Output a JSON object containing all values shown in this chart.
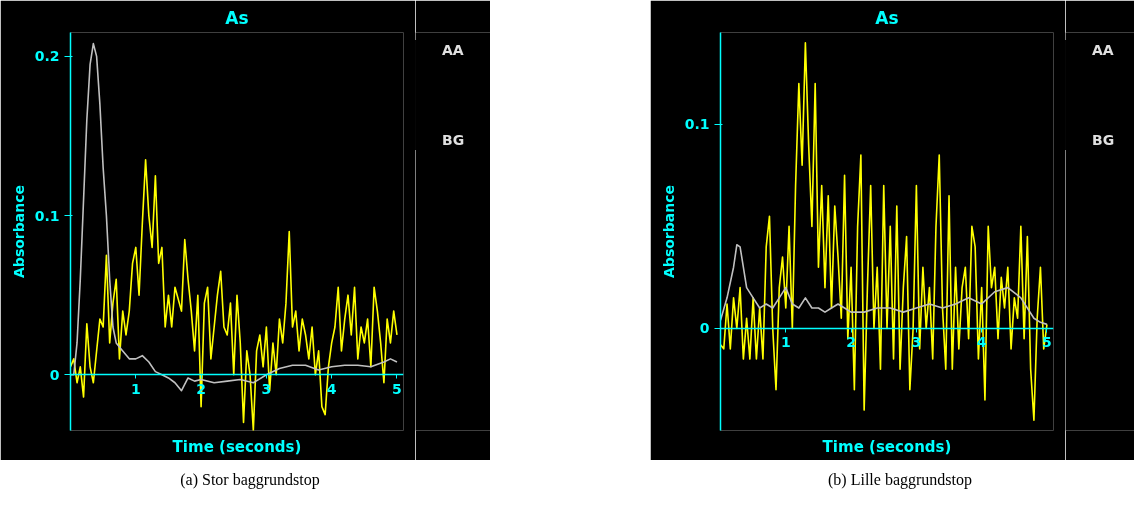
{
  "chart_data": [
    {
      "type": "line",
      "title": "As",
      "xlabel": "Time (seconds)",
      "ylabel": "Absorbance",
      "xlim": [
        0,
        5.1
      ],
      "ylim": [
        -0.035,
        0.215
      ],
      "xticks": [
        1,
        2,
        3,
        4,
        5
      ],
      "yticks": [
        0,
        0.1,
        0.2
      ],
      "grid": false,
      "legend": "right",
      "annotations": [
        "(a)  Stor baggrundstop"
      ],
      "series": [
        {
          "name": "AA",
          "color": "#ffff00",
          "x": [
            0,
            0.05,
            0.1,
            0.15,
            0.2,
            0.25,
            0.3,
            0.35,
            0.4,
            0.45,
            0.5,
            0.55,
            0.6,
            0.65,
            0.7,
            0.75,
            0.8,
            0.85,
            0.9,
            0.95,
            1.0,
            1.05,
            1.1,
            1.15,
            1.2,
            1.25,
            1.3,
            1.35,
            1.4,
            1.45,
            1.5,
            1.55,
            1.6,
            1.7,
            1.75,
            1.8,
            1.85,
            1.9,
            1.95,
            2.0,
            2.05,
            2.1,
            2.15,
            2.2,
            2.25,
            2.3,
            2.35,
            2.4,
            2.45,
            2.5,
            2.55,
            2.6,
            2.65,
            2.7,
            2.75,
            2.8,
            2.85,
            2.9,
            2.95,
            3.0,
            3.05,
            3.1,
            3.15,
            3.2,
            3.25,
            3.3,
            3.35,
            3.4,
            3.45,
            3.5,
            3.55,
            3.6,
            3.65,
            3.7,
            3.75,
            3.8,
            3.85,
            3.9,
            3.95,
            4.0,
            4.05,
            4.1,
            4.15,
            4.2,
            4.25,
            4.3,
            4.35,
            4.4,
            4.45,
            4.5,
            4.55,
            4.6,
            4.65,
            4.7,
            4.75,
            4.8,
            4.85,
            4.9,
            4.95,
            5.0
          ],
          "values": [
            0.005,
            0.01,
            -0.005,
            0.005,
            -0.014,
            0.032,
            0.005,
            -0.005,
            0.015,
            0.035,
            0.03,
            0.075,
            0.02,
            0.045,
            0.06,
            0.01,
            0.04,
            0.025,
            0.04,
            0.07,
            0.08,
            0.05,
            0.095,
            0.135,
            0.1,
            0.08,
            0.125,
            0.07,
            0.08,
            0.03,
            0.05,
            0.03,
            0.055,
            0.04,
            0.085,
            0.06,
            0.04,
            0.015,
            0.05,
            -0.02,
            0.045,
            0.055,
            0.01,
            0.03,
            0.05,
            0.065,
            0.03,
            0.025,
            0.045,
            0.0,
            0.05,
            0.02,
            -0.03,
            0.015,
            0.0,
            -0.035,
            0.015,
            0.025,
            0.005,
            0.03,
            -0.01,
            0.02,
            0.0,
            0.035,
            0.02,
            0.045,
            0.09,
            0.03,
            0.04,
            0.015,
            0.035,
            0.025,
            0.01,
            0.03,
            0.0,
            0.015,
            -0.02,
            -0.025,
            0.005,
            0.02,
            0.03,
            0.055,
            0.015,
            0.035,
            0.05,
            0.025,
            0.055,
            0.01,
            0.03,
            0.02,
            0.035,
            0.005,
            0.055,
            0.04,
            0.02,
            -0.005,
            0.035,
            0.02,
            0.04,
            0.025
          ]
        },
        {
          "name": "BG",
          "color": "#c0c0c0",
          "x": [
            0,
            0.05,
            0.1,
            0.15,
            0.2,
            0.25,
            0.3,
            0.35,
            0.4,
            0.45,
            0.5,
            0.55,
            0.6,
            0.65,
            0.7,
            0.8,
            0.9,
            1.0,
            1.1,
            1.2,
            1.3,
            1.4,
            1.5,
            1.6,
            1.7,
            1.8,
            1.9,
            2.0,
            2.2,
            2.4,
            2.6,
            2.8,
            3.0,
            3.2,
            3.4,
            3.6,
            3.8,
            4.0,
            4.2,
            4.4,
            4.6,
            4.8,
            4.9,
            5.0
          ],
          "values": [
            0.0,
            0.0,
            0.02,
            0.06,
            0.11,
            0.16,
            0.195,
            0.208,
            0.2,
            0.17,
            0.13,
            0.1,
            0.06,
            0.03,
            0.02,
            0.015,
            0.01,
            0.01,
            0.012,
            0.008,
            0.002,
            0.0,
            -0.002,
            -0.005,
            -0.01,
            -0.002,
            -0.004,
            -0.003,
            -0.005,
            -0.004,
            -0.003,
            -0.005,
            0.0,
            0.004,
            0.006,
            0.006,
            0.003,
            0.005,
            0.006,
            0.006,
            0.005,
            0.008,
            0.01,
            0.008
          ]
        }
      ]
    },
    {
      "type": "line",
      "title": "As",
      "xlabel": "Time (seconds)",
      "ylabel": "Absorbance",
      "xlim": [
        0,
        5.1
      ],
      "ylim": [
        -0.05,
        0.145
      ],
      "xticks": [
        1,
        2,
        3,
        4,
        5
      ],
      "yticks": [
        0,
        0.1
      ],
      "grid": false,
      "legend": "right",
      "annotations": [
        "(b)  Lille baggrundstop"
      ],
      "series": [
        {
          "name": "AA",
          "color": "#ffff00",
          "x": [
            0,
            0.05,
            0.1,
            0.15,
            0.2,
            0.25,
            0.3,
            0.35,
            0.4,
            0.45,
            0.5,
            0.55,
            0.6,
            0.65,
            0.7,
            0.75,
            0.8,
            0.85,
            0.9,
            0.95,
            1.0,
            1.05,
            1.1,
            1.15,
            1.2,
            1.25,
            1.3,
            1.35,
            1.4,
            1.45,
            1.5,
            1.55,
            1.6,
            1.65,
            1.7,
            1.75,
            1.8,
            1.85,
            1.9,
            1.95,
            2.0,
            2.05,
            2.1,
            2.15,
            2.2,
            2.25,
            2.3,
            2.35,
            2.4,
            2.45,
            2.5,
            2.55,
            2.6,
            2.65,
            2.7,
            2.75,
            2.8,
            2.85,
            2.9,
            2.95,
            3.0,
            3.05,
            3.1,
            3.15,
            3.2,
            3.25,
            3.3,
            3.35,
            3.4,
            3.45,
            3.5,
            3.55,
            3.6,
            3.65,
            3.7,
            3.75,
            3.8,
            3.85,
            3.9,
            3.95,
            4.0,
            4.05,
            4.1,
            4.15,
            4.2,
            4.25,
            4.3,
            4.35,
            4.4,
            4.45,
            4.5,
            4.55,
            4.6,
            4.65,
            4.7,
            4.75,
            4.8,
            4.85,
            4.9,
            4.95,
            5.0
          ],
          "values": [
            -0.008,
            -0.01,
            0.012,
            -0.01,
            0.015,
            0.0,
            0.02,
            -0.015,
            0.005,
            -0.015,
            0.015,
            -0.015,
            0.01,
            -0.015,
            0.04,
            0.055,
            0.0,
            -0.03,
            0.02,
            0.035,
            0.01,
            0.05,
            0.0,
            0.07,
            0.12,
            0.08,
            0.14,
            0.09,
            0.05,
            0.12,
            0.03,
            0.07,
            0.02,
            0.065,
            0.01,
            0.06,
            0.035,
            0.005,
            0.075,
            -0.005,
            0.03,
            -0.03,
            0.05,
            0.085,
            -0.04,
            0.02,
            0.07,
            0.0,
            0.03,
            -0.02,
            0.07,
            0.0,
            0.05,
            -0.015,
            0.06,
            -0.02,
            0.02,
            0.045,
            -0.03,
            0.0,
            0.07,
            -0.01,
            0.03,
            0.0,
            0.02,
            -0.015,
            0.05,
            0.085,
            0.01,
            -0.02,
            0.065,
            -0.02,
            0.03,
            -0.01,
            0.02,
            0.03,
            -0.005,
            0.05,
            0.04,
            -0.015,
            0.02,
            -0.035,
            0.05,
            0.02,
            0.03,
            -0.005,
            0.025,
            0.01,
            0.03,
            -0.01,
            0.015,
            0.005,
            0.05,
            -0.005,
            0.045,
            -0.02,
            -0.045,
            0.005,
            0.03,
            -0.01,
            0.002
          ]
        },
        {
          "name": "BG",
          "color": "#c0c0c0",
          "x": [
            0,
            0.1,
            0.2,
            0.25,
            0.3,
            0.35,
            0.4,
            0.5,
            0.6,
            0.7,
            0.8,
            0.9,
            1.0,
            1.1,
            1.2,
            1.3,
            1.4,
            1.5,
            1.6,
            1.7,
            1.8,
            1.9,
            2.0,
            2.2,
            2.4,
            2.6,
            2.8,
            3.0,
            3.2,
            3.4,
            3.6,
            3.8,
            4.0,
            4.2,
            4.4,
            4.6,
            4.8,
            4.9,
            5.0
          ],
          "values": [
            0.004,
            0.015,
            0.03,
            0.041,
            0.04,
            0.03,
            0.02,
            0.015,
            0.01,
            0.012,
            0.01,
            0.015,
            0.02,
            0.012,
            0.01,
            0.015,
            0.01,
            0.01,
            0.008,
            0.01,
            0.012,
            0.01,
            0.008,
            0.008,
            0.01,
            0.01,
            0.008,
            0.01,
            0.012,
            0.01,
            0.012,
            0.015,
            0.012,
            0.018,
            0.02,
            0.015,
            0.005,
            0.003,
            0.002
          ]
        }
      ]
    }
  ]
}
